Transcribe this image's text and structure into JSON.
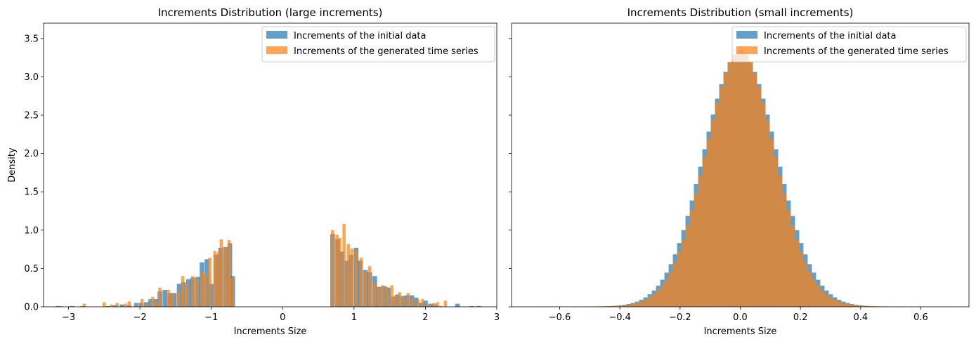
{
  "chart_data": [
    {
      "type": "bar",
      "title": "Increments Distribution (large increments)",
      "xlabel": "Increments Size",
      "ylabel": "Density",
      "xlim": [
        -3.35,
        3.0
      ],
      "ylim": [
        0,
        3.7
      ],
      "xticks": [
        -3,
        -2,
        -1,
        0,
        1,
        2,
        3
      ],
      "xtick_labels": [
        "−3",
        "−2",
        "−1",
        "0",
        "1",
        "2",
        "3"
      ],
      "yticks": [
        0.0,
        0.5,
        1.0,
        1.5,
        2.0,
        2.5,
        3.0,
        3.5
      ],
      "ytick_labels": [
        "0.0",
        "0.5",
        "1.0",
        "1.5",
        "2.0",
        "2.5",
        "3.0",
        "3.5"
      ],
      "legend_placement": "top-right",
      "series": [
        {
          "name": "Increments of the initial data",
          "color": "#1f77b4",
          "opacity": 0.7,
          "bin_width": 0.065,
          "bins": [
            [
              -3.15,
              0.01
            ],
            [
              -2.95,
              0.01
            ],
            [
              -2.8,
              0.01
            ],
            [
              -2.45,
              0.01
            ],
            [
              -2.35,
              0.02
            ],
            [
              -2.25,
              0.03
            ],
            [
              -2.15,
              0.02
            ],
            [
              -2.05,
              0.05
            ],
            [
              -1.98,
              0.05
            ],
            [
              -1.91,
              0.06
            ],
            [
              -1.85,
              0.1
            ],
            [
              -1.78,
              0.1
            ],
            [
              -1.72,
              0.2
            ],
            [
              -1.65,
              0.22
            ],
            [
              -1.58,
              0.18
            ],
            [
              -1.52,
              0.18
            ],
            [
              -1.45,
              0.3
            ],
            [
              -1.39,
              0.32
            ],
            [
              -1.32,
              0.36
            ],
            [
              -1.26,
              0.38
            ],
            [
              -1.19,
              0.39
            ],
            [
              -1.13,
              0.58
            ],
            [
              -1.06,
              0.62
            ],
            [
              -1.0,
              0.3
            ],
            [
              -0.93,
              0.68
            ],
            [
              -0.87,
              0.77
            ],
            [
              -0.8,
              0.78
            ],
            [
              -0.74,
              0.83
            ],
            [
              -0.7,
              0.4
            ],
            [
              0.7,
              0.95
            ],
            [
              0.77,
              0.88
            ],
            [
              0.83,
              0.72
            ],
            [
              0.9,
              0.6
            ],
            [
              0.96,
              0.68
            ],
            [
              1.03,
              0.77
            ],
            [
              1.09,
              0.6
            ],
            [
              1.16,
              0.48
            ],
            [
              1.22,
              0.45
            ],
            [
              1.29,
              0.4
            ],
            [
              1.35,
              0.26
            ],
            [
              1.42,
              0.27
            ],
            [
              1.48,
              0.25
            ],
            [
              1.55,
              0.13
            ],
            [
              1.61,
              0.16
            ],
            [
              1.68,
              0.14
            ],
            [
              1.74,
              0.15
            ],
            [
              1.81,
              0.15
            ],
            [
              1.87,
              0.12
            ],
            [
              1.94,
              0.05
            ],
            [
              2.0,
              0.08
            ],
            [
              2.07,
              0.04
            ],
            [
              2.13,
              0.03
            ],
            [
              2.2,
              0.01
            ],
            [
              2.45,
              0.04
            ],
            [
              2.65,
              0.01
            ],
            [
              2.75,
              0.01
            ]
          ]
        },
        {
          "name": "Increments of the generated time series",
          "color": "#ff7f0e",
          "opacity": 0.7,
          "bin_width": 0.045,
          "bins": [
            [
              -3.1,
              0.01
            ],
            [
              -2.95,
              0.01
            ],
            [
              -2.78,
              0.04
            ],
            [
              -2.5,
              0.06
            ],
            [
              -2.4,
              0.03
            ],
            [
              -2.32,
              0.05
            ],
            [
              -2.2,
              0.04
            ],
            [
              -2.15,
              0.07
            ],
            [
              -2.05,
              0.02
            ],
            [
              -1.97,
              0.1
            ],
            [
              -1.9,
              0.04
            ],
            [
              -1.82,
              0.13
            ],
            [
              -1.75,
              0.06
            ],
            [
              -1.72,
              0.25
            ],
            [
              -1.6,
              0.22
            ],
            [
              -1.55,
              0.17
            ],
            [
              -1.46,
              0.2
            ],
            [
              -1.4,
              0.4
            ],
            [
              -1.34,
              0.3
            ],
            [
              -1.26,
              0.4
            ],
            [
              -1.2,
              0.36
            ],
            [
              -1.13,
              0.45
            ],
            [
              -1.08,
              0.43
            ],
            [
              -1.02,
              0.64
            ],
            [
              -0.95,
              0.73
            ],
            [
              -0.9,
              0.71
            ],
            [
              -0.86,
              0.88
            ],
            [
              -0.8,
              0.78
            ],
            [
              -0.75,
              0.87
            ],
            [
              -0.71,
              0.38
            ],
            [
              0.7,
              1.0
            ],
            [
              0.76,
              0.94
            ],
            [
              0.8,
              0.9
            ],
            [
              0.86,
              1.08
            ],
            [
              0.92,
              0.82
            ],
            [
              0.97,
              0.76
            ],
            [
              1.03,
              0.73
            ],
            [
              1.1,
              0.64
            ],
            [
              1.16,
              0.45
            ],
            [
              1.22,
              0.53
            ],
            [
              1.28,
              0.32
            ],
            [
              1.34,
              0.26
            ],
            [
              1.4,
              0.28
            ],
            [
              1.46,
              0.26
            ],
            [
              1.53,
              0.28
            ],
            [
              1.58,
              0.15
            ],
            [
              1.64,
              0.19
            ],
            [
              1.7,
              0.12
            ],
            [
              1.76,
              0.18
            ],
            [
              1.83,
              0.11
            ],
            [
              1.9,
              0.09
            ],
            [
              1.96,
              0.1
            ],
            [
              2.05,
              0.03
            ],
            [
              2.12,
              0.05
            ],
            [
              2.17,
              0.06
            ],
            [
              2.28,
              0.08
            ]
          ]
        }
      ]
    },
    {
      "type": "bar",
      "title": "Increments Distribution (small increments)",
      "xlabel": "Increments Size",
      "ylabel": "",
      "xlim": [
        -0.76,
        0.76
      ],
      "ylim": [
        0,
        3.7
      ],
      "xticks": [
        -0.6,
        -0.4,
        -0.2,
        0.0,
        0.2,
        0.4,
        0.6
      ],
      "xtick_labels": [
        "−0.6",
        "−0.4",
        "−0.2",
        "0.0",
        "0.2",
        "0.4",
        "0.6"
      ],
      "yticks": [
        0.0,
        0.5,
        1.0,
        1.5,
        2.0,
        2.5,
        3.0,
        3.5
      ],
      "ytick_labels": [],
      "legend_placement": "top-right",
      "series": [
        {
          "name": "Increments of the initial data",
          "color": "#1f77b4",
          "opacity": 0.7,
          "distribution": {
            "center": 0.0,
            "sigma": 0.122,
            "peak": 3.25,
            "tail_scale": 0.02,
            "tail_decay": 0.12
          },
          "x_range": [
            -0.7,
            0.7
          ],
          "bin_width": 0.014
        },
        {
          "name": "Increments of the generated time series",
          "color": "#ff7f0e",
          "opacity": 0.7,
          "distribution": {
            "center": 0.0,
            "sigma": 0.115,
            "peak": 3.22,
            "tail_scale": 0.03,
            "tail_decay": 0.14
          },
          "x_range": [
            -0.7,
            0.7
          ],
          "bin_width": 0.014
        }
      ]
    }
  ]
}
